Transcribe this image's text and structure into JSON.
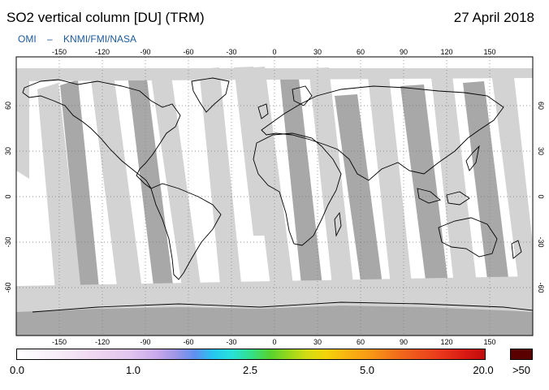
{
  "header": {
    "title": "SO2 vertical column [DU] (TRM)",
    "date": "27 April 2018",
    "credit_left": "OMI",
    "credit_sep": "–",
    "credit_right": "KNMI/FMI/NASA"
  },
  "map": {
    "lon_ticks": [
      "-150",
      "-120",
      "-90",
      "-60",
      "-30",
      "0",
      "30",
      "60",
      "90",
      "120",
      "150"
    ],
    "lat_ticks": [
      "60",
      "30",
      "0",
      "-30",
      "-60"
    ],
    "colors": {
      "ocean_white": "#ffffff",
      "swath_gap_light": "#d3d3d3",
      "swath_gap_dark": "#a8a8a8",
      "land_outline": "#000000",
      "gridline": "#7a7a7a"
    }
  },
  "colorbar": {
    "labels": [
      "0.0",
      "1.0",
      "2.5",
      "5.0",
      "20.0"
    ],
    "overflow_label": ">50",
    "overflow_color": "#5a0000"
  }
}
